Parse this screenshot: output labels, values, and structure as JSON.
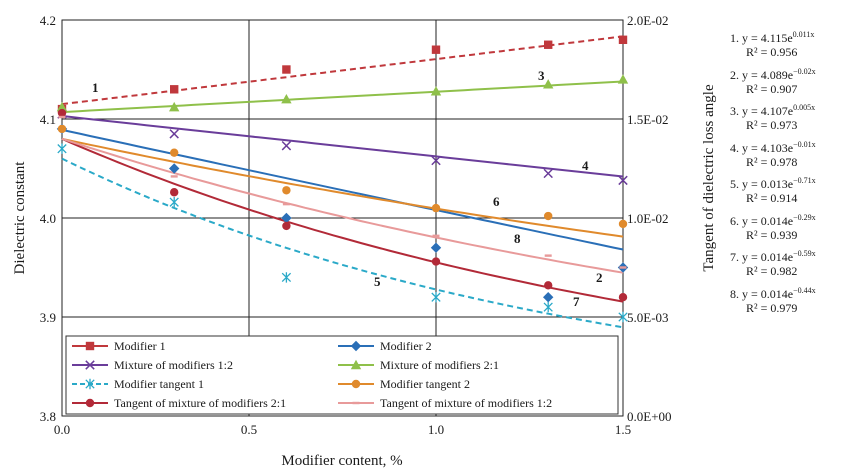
{
  "chart_data": {
    "type": "scatter",
    "x_axis": {
      "label": "Modifier content, %",
      "min": 0,
      "max": 1.5,
      "ticks": [
        "0.0",
        "0.5",
        "1.0",
        "1.5"
      ]
    },
    "y_axis_left": {
      "label": "Dielectric constant",
      "min": 3.8,
      "max": 4.2,
      "ticks": [
        "3.8",
        "3.9",
        "4.0",
        "4.1",
        "4.2"
      ]
    },
    "y_axis_right": {
      "label": "Tangent of dielectric loss angle",
      "min": 0,
      "max": 0.02,
      "ticks": [
        "0.0E+00",
        "5.0E-03",
        "1.0E-02",
        "1.5E-02",
        "2.0E-02"
      ]
    },
    "grid": true,
    "series": [
      {
        "name": "Modifier 1",
        "axis": "left",
        "marker": "square",
        "color": "#c0383c",
        "x": [
          0,
          0.3,
          0.6,
          1.0,
          1.3,
          1.5
        ],
        "y": [
          4.11,
          4.13,
          4.15,
          4.17,
          4.175,
          4.18
        ],
        "trend": {
          "type": "exp",
          "a": 4.115,
          "b": 0.011,
          "style": "dashed",
          "label": "1"
        }
      },
      {
        "name": "Modifier 2",
        "axis": "left",
        "marker": "diamond",
        "color": "#2a6fb7",
        "x": [
          0,
          0.3,
          0.6,
          1.0,
          1.3,
          1.5
        ],
        "y": [
          4.09,
          4.05,
          4.0,
          3.97,
          3.92,
          3.95
        ],
        "trend": {
          "type": "exp",
          "a": 4.089,
          "b": -0.02,
          "style": "solid",
          "label": "2"
        }
      },
      {
        "name": "Mixture of modifiers 1:2",
        "axis": "left",
        "marker": "x",
        "color": "#6a3d9a",
        "x": [
          0,
          0.3,
          0.6,
          1.0,
          1.3,
          1.5
        ],
        "y": [
          4.105,
          4.085,
          4.073,
          4.058,
          4.045,
          4.038
        ],
        "trend": {
          "type": "exp",
          "a": 4.103,
          "b": -0.01,
          "style": "solid",
          "label": "4"
        }
      },
      {
        "name": "Mixture of modifiers 2:1",
        "axis": "left",
        "marker": "triangle",
        "color": "#8fc04a",
        "x": [
          0,
          0.3,
          0.6,
          1.0,
          1.3,
          1.5
        ],
        "y": [
          4.112,
          4.112,
          4.12,
          4.128,
          4.135,
          4.14
        ],
        "trend": {
          "type": "exp",
          "a": 4.107,
          "b": 0.005,
          "style": "solid",
          "label": "3"
        }
      },
      {
        "name": "Modifier tangent 1",
        "axis": "right",
        "marker": "star",
        "color": "#2aa9c8",
        "x": [
          0,
          0.3,
          0.6,
          1.0,
          1.3,
          1.5
        ],
        "y": [
          0.0135,
          0.0108,
          0.007,
          0.006,
          0.0055,
          0.005
        ],
        "trend": {
          "type": "exp",
          "a": 0.013,
          "b": -0.71,
          "style": "dashed",
          "label": "5"
        }
      },
      {
        "name": "Modifier tangent 2",
        "axis": "right",
        "marker": "circle",
        "color": "#e08a2c",
        "x": [
          0,
          0.3,
          0.6,
          1.0,
          1.3,
          1.5
        ],
        "y": [
          0.0145,
          0.0133,
          0.0114,
          0.0105,
          0.0101,
          0.0097
        ],
        "trend": {
          "type": "exp",
          "a": 0.014,
          "b": -0.29,
          "style": "solid",
          "label": "6"
        }
      },
      {
        "name": "Tangent of mixture of modifiers 2:1",
        "axis": "right",
        "marker": "circle",
        "color": "#b22a38",
        "x": [
          0,
          0.3,
          0.6,
          1.0,
          1.3,
          1.5
        ],
        "y": [
          0.0153,
          0.0113,
          0.0096,
          0.0078,
          0.0066,
          0.006
        ],
        "trend": {
          "type": "exp",
          "a": 0.014,
          "b": -0.59,
          "style": "solid",
          "label": "7"
        }
      },
      {
        "name": "Tangent of mixture of modifiers 1:2",
        "axis": "right",
        "marker": "dash",
        "color": "#e89a9a",
        "x": [
          0,
          0.3,
          0.6,
          1.0,
          1.3,
          1.5
        ],
        "y": [
          0.0151,
          0.0121,
          0.0107,
          0.0091,
          0.0081,
          0.0075
        ],
        "trend": {
          "type": "exp",
          "a": 0.014,
          "b": -0.44,
          "style": "solid",
          "label": "8"
        }
      }
    ],
    "equations": [
      {
        "head": "1. y = 4.115e",
        "exp": "0.011x",
        "r2": "R² = 0.956"
      },
      {
        "head": "2. y = 4.089e",
        "exp": "−0.02x",
        "r2": "R² = 0.907"
      },
      {
        "head": "3. y = 4.107e",
        "exp": "0.005x",
        "r2": "R² = 0.973"
      },
      {
        "head": "4. y = 4.103e",
        "exp": "−0.01x",
        "r2": "R² = 0.978"
      },
      {
        "head": "5. y = 0.013e",
        "exp": "−0.71x",
        "r2": "R² = 0.914"
      },
      {
        "head": "6. y = 0.014e",
        "exp": "−0.29x",
        "r2": "R² = 0.939"
      },
      {
        "head": "7. y = 0.014e",
        "exp": "−0.59x",
        "r2": "R² = 0.982"
      },
      {
        "head": "8. y = 0.014e",
        "exp": "−0.44x",
        "r2": "R² = 0.979"
      }
    ]
  }
}
